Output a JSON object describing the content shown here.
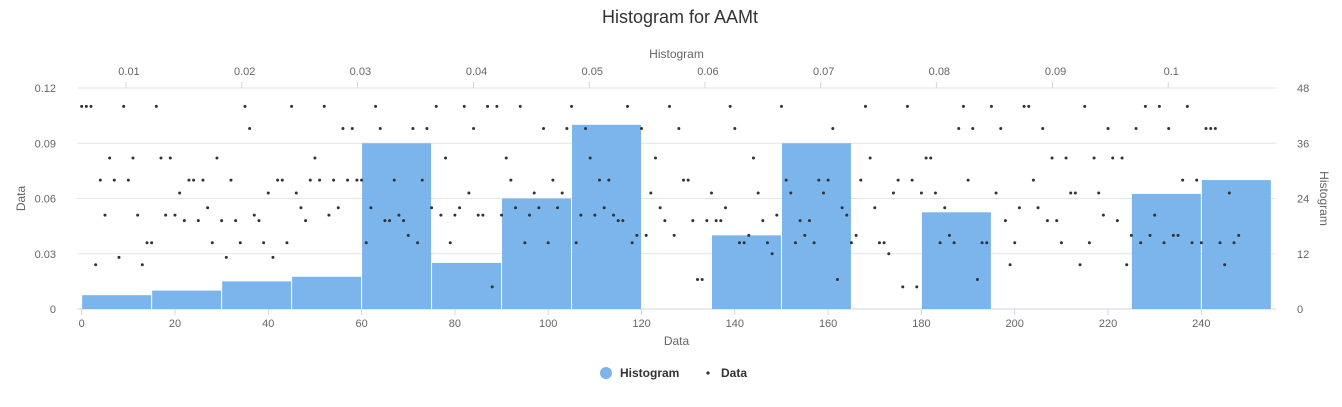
{
  "chart_data": {
    "type": "bar",
    "title": "Histogram for AAMt",
    "colors": {
      "histogram": "#7cb5ec",
      "data": "#333333"
    },
    "x_axis": {
      "title": "Data",
      "range": [
        -1,
        256
      ],
      "ticks": [
        0,
        20,
        40,
        60,
        80,
        100,
        120,
        140,
        160,
        180,
        200,
        220,
        240
      ]
    },
    "x2_axis": {
      "title": "Histogram",
      "ticks": [
        0.01,
        0.02,
        0.03,
        0.04,
        0.05,
        0.06,
        0.07,
        0.08,
        0.09,
        0.1
      ],
      "tick_x": [
        9.5,
        34.3,
        59.1,
        84.0,
        108.8,
        133.6,
        158.4,
        183.2,
        208.1,
        232.9
      ]
    },
    "y_axis": {
      "title": "Data",
      "range": [
        0,
        0.12
      ],
      "ticks": [
        0,
        0.03,
        0.06,
        0.09,
        0.12
      ],
      "tick_labels": [
        "0",
        "0.03",
        "0.06",
        "0.09",
        "0.12"
      ]
    },
    "y2_axis": {
      "title": "Histogram",
      "range": [
        0,
        48
      ],
      "ticks": [
        0,
        12,
        24,
        36,
        48
      ],
      "tick_labels": [
        "0",
        "12",
        "24",
        "36",
        "48"
      ]
    },
    "grid": true,
    "legend": {
      "position": "bottom-center",
      "items": [
        "Histogram",
        "Data"
      ]
    },
    "series": [
      {
        "name": "Histogram",
        "type": "column",
        "bins": [
          {
            "x0": 0,
            "x1": 15,
            "count": 3
          },
          {
            "x0": 15,
            "x1": 30,
            "count": 4
          },
          {
            "x0": 30,
            "x1": 45,
            "count": 6
          },
          {
            "x0": 45,
            "x1": 60,
            "count": 7
          },
          {
            "x0": 60,
            "x1": 75,
            "count": 36
          },
          {
            "x0": 75,
            "x1": 90,
            "count": 10
          },
          {
            "x0": 90,
            "x1": 105,
            "count": 24
          },
          {
            "x0": 105,
            "x1": 120,
            "count": 40
          },
          {
            "x0": 120,
            "x1": 135,
            "count": 0
          },
          {
            "x0": 135,
            "x1": 150,
            "count": 16
          },
          {
            "x0": 150,
            "x1": 165,
            "count": 36
          },
          {
            "x0": 165,
            "x1": 180,
            "count": 0
          },
          {
            "x0": 180,
            "x1": 195,
            "count": 21
          },
          {
            "x0": 195,
            "x1": 210,
            "count": 0
          },
          {
            "x0": 210,
            "x1": 225,
            "count": 0
          },
          {
            "x0": 225,
            "x1": 240,
            "count": 25
          },
          {
            "x0": 240,
            "x1": 255,
            "count": 28
          }
        ]
      },
      {
        "name": "Data",
        "type": "scatter",
        "y": [
          0.11,
          0.11,
          0.11,
          0.024,
          0.07,
          0.051,
          0.082,
          0.07,
          0.028,
          0.11,
          0.07,
          0.082,
          0.051,
          0.024,
          0.036,
          0.036,
          0.11,
          0.082,
          0.051,
          0.082,
          0.051,
          0.063,
          0.048,
          0.07,
          0.07,
          0.048,
          0.07,
          0.055,
          0.036,
          0.082,
          0.048,
          0.028,
          0.07,
          0.048,
          0.036,
          0.11,
          0.098,
          0.051,
          0.048,
          0.036,
          0.063,
          0.028,
          0.07,
          0.07,
          0.036,
          0.11,
          0.063,
          0.055,
          0.048,
          0.07,
          0.082,
          0.07,
          0.11,
          0.051,
          0.07,
          0.055,
          0.098,
          0.07,
          0.098,
          0.07,
          0.07,
          0.036,
          0.055,
          0.11,
          0.098,
          0.048,
          0.048,
          0.07,
          0.051,
          0.048,
          0.04,
          0.098,
          0.036,
          0.07,
          0.098,
          0.055,
          0.11,
          0.051,
          0.082,
          0.036,
          0.051,
          0.055,
          0.11,
          0.063,
          0.098,
          0.051,
          0.051,
          0.11,
          0.012,
          0.11,
          0.051,
          0.082,
          0.07,
          0.055,
          0.11,
          0.036,
          0.051,
          0.063,
          0.055,
          0.098,
          0.036,
          0.07,
          0.055,
          0.063,
          0.098,
          0.11,
          0.036,
          0.051,
          0.098,
          0.082,
          0.051,
          0.07,
          0.055,
          0.07,
          0.051,
          0.048,
          0.048,
          0.11,
          0.036,
          0.04,
          0.098,
          0.04,
          0.063,
          0.082,
          0.055,
          0.048,
          0.11,
          0.04,
          0.098,
          0.07,
          0.07,
          0.048,
          0.016,
          0.016,
          0.048,
          0.063,
          0.048,
          0.048,
          0.055,
          0.11,
          0.098,
          0.036,
          0.036,
          0.04,
          0.082,
          0.063,
          0.048,
          0.036,
          0.03,
          0.051,
          0.11,
          0.07,
          0.063,
          0.036,
          0.048,
          0.04,
          0.048,
          0.036,
          0.07,
          0.063,
          0.07,
          0.098,
          0.016,
          0.055,
          0.051,
          0.036,
          0.04,
          0.07,
          0.11,
          0.082,
          0.055,
          0.036,
          0.036,
          0.03,
          0.063,
          0.07,
          0.012,
          0.11,
          0.07,
          0.012,
          0.063,
          0.082,
          0.082,
          0.063,
          0.036,
          0.055,
          0.04,
          0.036,
          0.098,
          0.11,
          0.07,
          0.098,
          0.016,
          0.036,
          0.036,
          0.11,
          0.063,
          0.098,
          0.048,
          0.024,
          0.036,
          0.055,
          0.11,
          0.11,
          0.07,
          0.055,
          0.098,
          0.048,
          0.082,
          0.048,
          0.036,
          0.082,
          0.063,
          0.063,
          0.024,
          0.11,
          0.036,
          0.082,
          0.063,
          0.051,
          0.098,
          0.082,
          0.048,
          0.082,
          0.024,
          0.04,
          0.098,
          0.036,
          0.11,
          0.04,
          0.051,
          0.11,
          0.036,
          0.098,
          0.04,
          0.04,
          0.07,
          0.11,
          0.036,
          0.07,
          0.036,
          0.098,
          0.098,
          0.098,
          0.036,
          0.024,
          0.063,
          0.036,
          0.04
        ]
      }
    ]
  }
}
